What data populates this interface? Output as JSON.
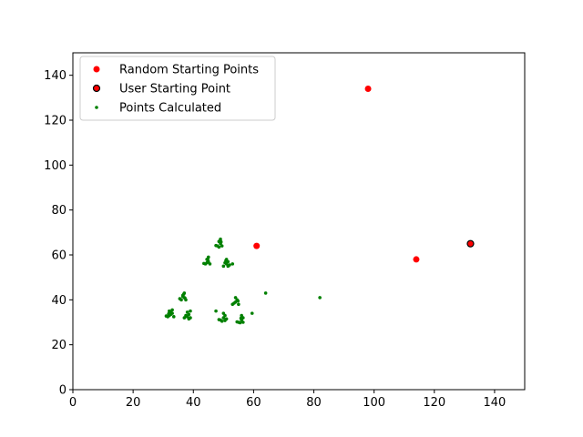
{
  "chart_data": {
    "type": "scatter",
    "title": "",
    "xlabel": "",
    "ylabel": "",
    "xlim": [
      0,
      150
    ],
    "ylim": [
      0,
      150
    ],
    "xticks": [
      0,
      20,
      40,
      60,
      80,
      100,
      120,
      140
    ],
    "yticks": [
      0,
      20,
      40,
      60,
      80,
      100,
      120,
      140
    ],
    "grid": false,
    "legend_position": "top-left",
    "series": [
      {
        "name": "Random Starting Points",
        "color": "#ff0000",
        "edge_color": "#ff0000",
        "marker": "circle-large",
        "points": [
          [
            61,
            64
          ],
          [
            98,
            134
          ],
          [
            114,
            58
          ]
        ]
      },
      {
        "name": "User Starting Point",
        "color": "#ff0000",
        "edge_color": "#000000",
        "marker": "circle-large-edged",
        "points": [
          [
            132,
            65
          ]
        ]
      },
      {
        "name": "Points Calculated",
        "color": "#008000",
        "edge_color": "#008000",
        "marker": "circle-small",
        "points": [
          [
            32,
            33
          ],
          [
            31.5,
            32.5
          ],
          [
            32.5,
            33.5
          ],
          [
            33,
            34
          ],
          [
            32,
            35
          ],
          [
            33,
            35.5
          ],
          [
            31,
            32.8
          ],
          [
            33.5,
            32.5
          ],
          [
            32.5,
            34.5
          ],
          [
            31.8,
            33.8
          ],
          [
            37,
            32
          ],
          [
            38,
            32.5
          ],
          [
            38.5,
            33.5
          ],
          [
            39,
            32
          ],
          [
            37.5,
            33
          ],
          [
            38,
            34.5
          ],
          [
            39,
            35
          ],
          [
            38.5,
            31.5
          ],
          [
            37.8,
            32.8
          ],
          [
            36,
            40
          ],
          [
            37,
            41
          ],
          [
            36.5,
            42
          ],
          [
            37,
            43
          ],
          [
            36.5,
            41.5
          ],
          [
            37.5,
            40
          ],
          [
            35.5,
            40.5
          ],
          [
            36.8,
            42.5
          ],
          [
            37.2,
            40.8
          ],
          [
            44,
            56
          ],
          [
            45,
            57
          ],
          [
            44.5,
            58
          ],
          [
            45,
            59
          ],
          [
            44.5,
            56.5
          ],
          [
            45.5,
            56
          ],
          [
            43.5,
            56.2
          ],
          [
            44.8,
            57.8
          ],
          [
            48,
            64
          ],
          [
            49,
            65
          ],
          [
            48.5,
            66
          ],
          [
            49,
            67
          ],
          [
            49.5,
            64
          ],
          [
            48.5,
            63.5
          ],
          [
            47.5,
            64.2
          ],
          [
            49.2,
            65.8
          ],
          [
            50,
            55
          ],
          [
            51,
            56
          ],
          [
            51.5,
            57
          ],
          [
            51,
            58
          ],
          [
            50.5,
            56.5
          ],
          [
            51.5,
            55
          ],
          [
            52,
            55.5
          ],
          [
            53,
            56
          ],
          [
            50.8,
            57.5
          ],
          [
            49,
            31
          ],
          [
            50,
            32
          ],
          [
            50.5,
            33
          ],
          [
            50,
            34
          ],
          [
            49.5,
            30.5
          ],
          [
            50.5,
            30.8
          ],
          [
            51,
            31.5
          ],
          [
            48.5,
            31.2
          ],
          [
            53,
            38
          ],
          [
            54,
            39
          ],
          [
            54.5,
            40
          ],
          [
            54,
            41
          ],
          [
            53.5,
            38.5
          ],
          [
            55,
            38
          ],
          [
            54.8,
            39.5
          ],
          [
            55,
            30
          ],
          [
            56,
            31
          ],
          [
            56.5,
            32
          ],
          [
            56,
            33
          ],
          [
            55.5,
            29.8
          ],
          [
            56.5,
            30
          ],
          [
            54.5,
            30.2
          ],
          [
            55.8,
            31.8
          ],
          [
            47.5,
            35
          ],
          [
            59.5,
            34
          ],
          [
            64,
            43
          ],
          [
            82,
            41
          ]
        ]
      }
    ]
  }
}
